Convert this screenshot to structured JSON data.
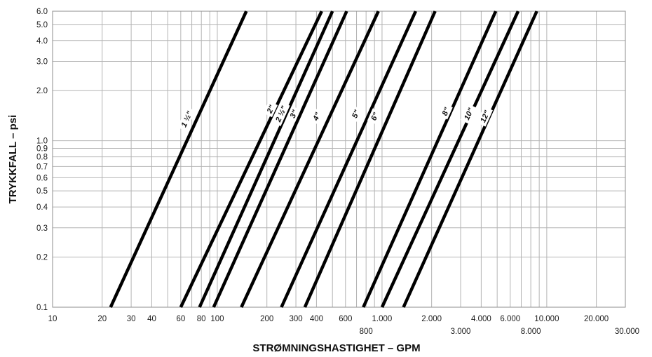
{
  "chart_data": {
    "type": "line",
    "title": "",
    "xlabel": "STRØMNINGSHASTIGHET – GPM",
    "ylabel": "TRYKKFALL – psi",
    "x_scale": "log",
    "y_scale": "log",
    "xlim": [
      10,
      30000
    ],
    "ylim": [
      0.1,
      6
    ],
    "grid": true,
    "legend": "none",
    "line_color": "#000000",
    "grid_color": "#b4b4b4",
    "x_tick_labels": [
      {
        "value": 10,
        "label": "10",
        "row": 0
      },
      {
        "value": 20,
        "label": "20",
        "row": 0
      },
      {
        "value": 30,
        "label": "30",
        "row": 0
      },
      {
        "value": 40,
        "label": "40",
        "row": 0
      },
      {
        "value": 60,
        "label": "60",
        "row": 0
      },
      {
        "value": 80,
        "label": "80",
        "row": 0
      },
      {
        "value": 100,
        "label": "100",
        "row": 0
      },
      {
        "value": 200,
        "label": "200",
        "row": 0
      },
      {
        "value": 300,
        "label": "300",
        "row": 0
      },
      {
        "value": 400,
        "label": "400",
        "row": 0
      },
      {
        "value": 600,
        "label": "600",
        "row": 0
      },
      {
        "value": 800,
        "label": "800",
        "row": 1
      },
      {
        "value": 1000,
        "label": "1.000",
        "row": 0
      },
      {
        "value": 2000,
        "label": "2.000",
        "row": 0
      },
      {
        "value": 3000,
        "label": "3.000",
        "row": 1
      },
      {
        "value": 4000,
        "label": "4.000",
        "row": 0
      },
      {
        "value": 6000,
        "label": "6.000",
        "row": 0
      },
      {
        "value": 8000,
        "label": "8.000",
        "row": 1
      },
      {
        "value": 10000,
        "label": "10.000",
        "row": 0
      },
      {
        "value": 20000,
        "label": "20.000",
        "row": 0
      },
      {
        "value": 30000,
        "label": "30.000",
        "row": 1
      }
    ],
    "y_tick_labels": [
      {
        "value": 0.1,
        "label": "0.1"
      },
      {
        "value": 0.2,
        "label": "0.2"
      },
      {
        "value": 0.3,
        "label": "0.3"
      },
      {
        "value": 0.4,
        "label": "0.4"
      },
      {
        "value": 0.5,
        "label": "0.5"
      },
      {
        "value": 0.6,
        "label": "0.6"
      },
      {
        "value": 0.7,
        "label": "0.7"
      },
      {
        "value": 0.8,
        "label": "0.8"
      },
      {
        "value": 0.9,
        "label": "0.9"
      },
      {
        "value": 1.0,
        "label": "1.0"
      },
      {
        "value": 2.0,
        "label": "2.0"
      },
      {
        "value": 3.0,
        "label": "3.0"
      },
      {
        "value": 4.0,
        "label": "4.0"
      },
      {
        "value": 5.0,
        "label": "5.0"
      },
      {
        "value": 6.0,
        "label": "6.0"
      }
    ],
    "series": [
      {
        "name": "1 ½\"",
        "x": [
          22.5,
          150
        ],
        "y": [
          0.1,
          6.0
        ],
        "label_at": [
          65,
          1.35
        ]
      },
      {
        "name": "2\"",
        "x": [
          60,
          430
        ],
        "y": [
          0.1,
          6.0
        ],
        "label_at": [
          210,
          1.55
        ]
      },
      {
        "name": "2 ½\"",
        "x": [
          78,
          500
        ],
        "y": [
          0.1,
          6.0
        ],
        "label_at": [
          243,
          1.45
        ]
      },
      {
        "name": "3\"",
        "x": [
          95,
          610
        ],
        "y": [
          0.1,
          6.0
        ],
        "label_at": [
          290,
          1.45
        ]
      },
      {
        "name": "4\"",
        "x": [
          140,
          950
        ],
        "y": [
          0.1,
          6.0
        ],
        "label_at": [
          400,
          1.4
        ]
      },
      {
        "name": "5\"",
        "x": [
          245,
          1600
        ],
        "y": [
          0.1,
          6.0
        ],
        "label_at": [
          690,
          1.45
        ]
      },
      {
        "name": "6\"",
        "x": [
          340,
          2100
        ],
        "y": [
          0.1,
          6.0
        ],
        "label_at": [
          900,
          1.4
        ]
      },
      {
        "name": "8\"",
        "x": [
          770,
          4900
        ],
        "y": [
          0.1,
          6.0
        ],
        "label_at": [
          2430,
          1.5
        ]
      },
      {
        "name": "10\"",
        "x": [
          1000,
          6700
        ],
        "y": [
          0.1,
          6.0
        ],
        "label_at": [
          3350,
          1.45
        ]
      },
      {
        "name": "12\"",
        "x": [
          1350,
          8700
        ],
        "y": [
          0.1,
          6.0
        ],
        "label_at": [
          4200,
          1.4
        ]
      }
    ]
  }
}
